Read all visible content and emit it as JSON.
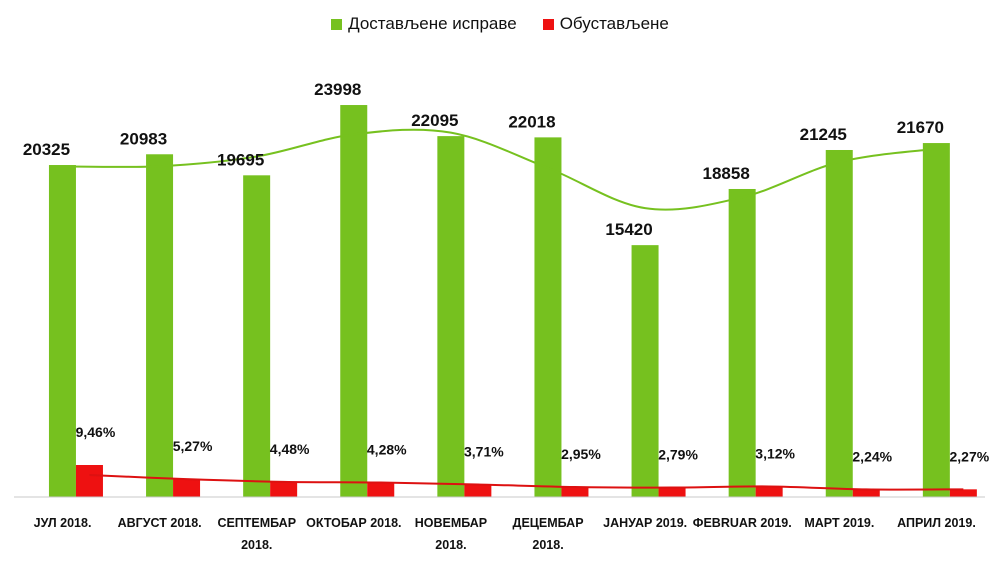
{
  "chart_data": {
    "type": "bar",
    "categories": [
      [
        "ЈУЛ 2018."
      ],
      [
        "АВГУСТ 2018."
      ],
      [
        "СЕПТЕМБАР",
        "2018."
      ],
      [
        "ОКТОБАР 2018."
      ],
      [
        "НОВЕМБАР",
        "2018."
      ],
      [
        "ДЕЦЕМБАР",
        "2018."
      ],
      [
        "ЈАНУАР 2019."
      ],
      [
        "ФЕBRUAR 2019."
      ],
      [
        "МАРТ 2019."
      ],
      [
        "АПРИЛ 2019."
      ]
    ],
    "series": [
      {
        "name": "Достављене исправе",
        "color": "#76c11f",
        "values": [
          20325,
          20983,
          19695,
          23998,
          22095,
          22018,
          15420,
          18858,
          21245,
          21670
        ],
        "labels": [
          "20325",
          "20983",
          "19695",
          "23998",
          "22095",
          "22018",
          "15420",
          "18858",
          "21245",
          "21670"
        ]
      },
      {
        "name": "Обустављене",
        "color": "#ee1111",
        "values": [
          9.46,
          5.27,
          4.48,
          4.28,
          3.71,
          2.95,
          2.79,
          3.12,
          2.24,
          2.27
        ],
        "labels": [
          "9,46%",
          "5,27%",
          "4,48%",
          "4,28%",
          "3,71%",
          "2,95%",
          "2,79%",
          "3,12%",
          "2,24%",
          "2,27%"
        ]
      }
    ],
    "trendlines": [
      {
        "series": "Достављене исправе",
        "style": "polynomial",
        "color": "#76c11f"
      },
      {
        "series": "Обустављене",
        "style": "linear",
        "color": "#dd1111"
      }
    ],
    "ylim": [
      0,
      24000
    ],
    "grid": false,
    "legend": "top-center",
    "title": "",
    "xlabel": "",
    "ylabel": ""
  }
}
